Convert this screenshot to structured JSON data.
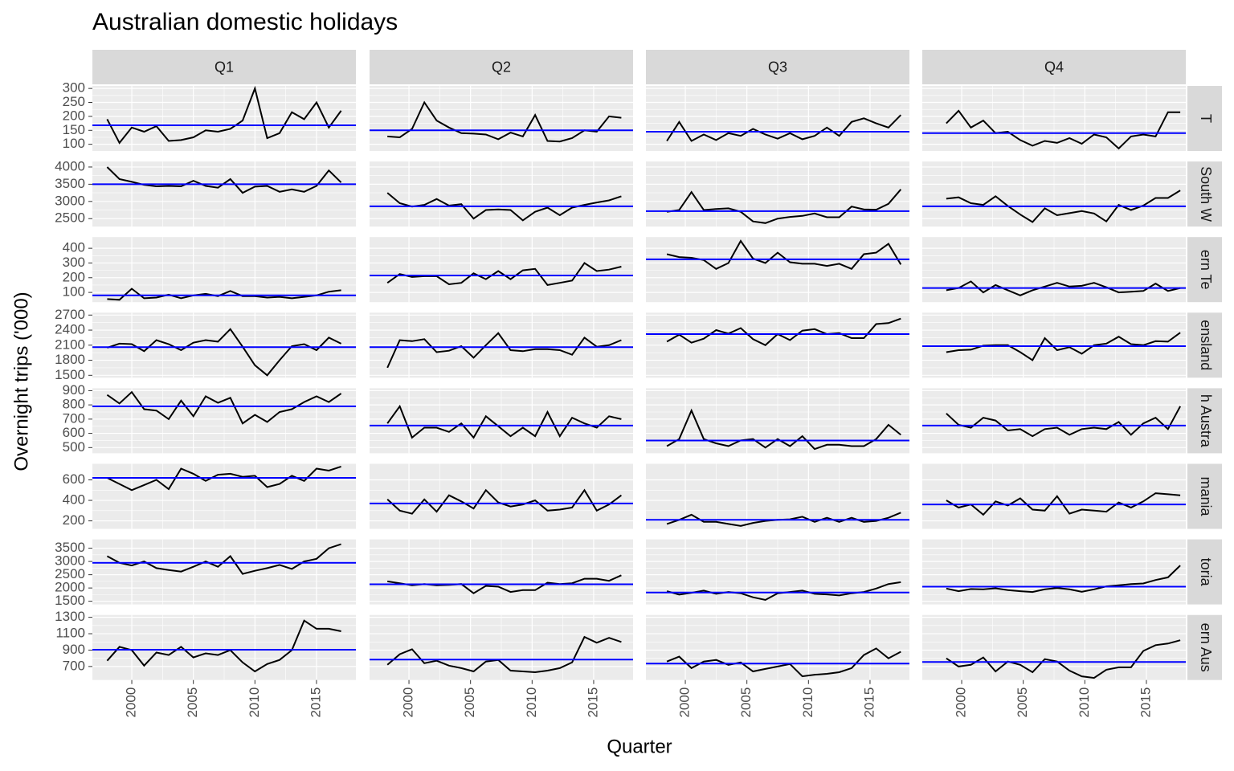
{
  "chart_data": {
    "type": "line",
    "title": "Australian domestic holidays",
    "x_label": "Quarter",
    "y_label": "Overnight trips ('000)",
    "columns": [
      "Q1",
      "Q2",
      "Q3",
      "Q4"
    ],
    "x": [
      1998,
      1999,
      2000,
      2001,
      2002,
      2003,
      2004,
      2005,
      2006,
      2007,
      2008,
      2009,
      2010,
      2011,
      2012,
      2013,
      2014,
      2015,
      2016,
      2017
    ],
    "xlim": [
      1996.8,
      2018.2
    ],
    "xticks": [
      2000,
      2005,
      2010,
      2015
    ],
    "line_color": "#000000",
    "mean_color": "#0000ff",
    "grid": true,
    "rows": [
      {
        "label": "T",
        "ylim": [
          76,
          309
        ],
        "yticks": [
          100,
          150,
          200,
          250,
          300
        ],
        "means": [
          168,
          150,
          145,
          140
        ],
        "values": [
          [
            190,
            105,
            160,
            145,
            165,
            112,
            115,
            125,
            150,
            145,
            155,
            185,
            300,
            122,
            140,
            215,
            190,
            250,
            160,
            220
          ],
          [
            128,
            125,
            155,
            250,
            185,
            160,
            140,
            138,
            135,
            118,
            142,
            128,
            205,
            112,
            110,
            122,
            150,
            145,
            200,
            195
          ],
          [
            112,
            180,
            112,
            135,
            115,
            140,
            130,
            155,
            135,
            120,
            140,
            118,
            130,
            160,
            130,
            180,
            193,
            175,
            160,
            205
          ],
          [
            175,
            220,
            160,
            185,
            140,
            145,
            115,
            95,
            112,
            105,
            122,
            102,
            135,
            125,
            85,
            128,
            135,
            128,
            215,
            215
          ]
        ]
      },
      {
        "label": "South W",
        "ylim": [
          2270,
          4160
        ],
        "yticks": [
          2500,
          3000,
          3500,
          4000
        ],
        "means": [
          3500,
          2860,
          2720,
          2860
        ],
        "values": [
          [
            4000,
            3650,
            3570,
            3480,
            3440,
            3450,
            3440,
            3600,
            3450,
            3400,
            3650,
            3250,
            3430,
            3450,
            3280,
            3350,
            3280,
            3450,
            3900,
            3550
          ],
          [
            3250,
            2950,
            2850,
            2900,
            3070,
            2880,
            2920,
            2500,
            2750,
            2770,
            2750,
            2450,
            2700,
            2820,
            2600,
            2820,
            2900,
            2970,
            3030,
            3150
          ],
          [
            2700,
            2750,
            3270,
            2750,
            2780,
            2800,
            2700,
            2420,
            2370,
            2500,
            2550,
            2580,
            2650,
            2540,
            2540,
            2850,
            2770,
            2760,
            2930,
            3350
          ],
          [
            3080,
            3120,
            2950,
            2900,
            3150,
            2870,
            2620,
            2400,
            2800,
            2600,
            2660,
            2720,
            2650,
            2420,
            2900,
            2750,
            2880,
            3100,
            3100,
            3320
          ]
        ]
      },
      {
        "label": "ern Te",
        "ylim": [
          34,
          476
        ],
        "yticks": [
          100,
          200,
          300,
          400
        ],
        "means": [
          80,
          215,
          325,
          130
        ],
        "values": [
          [
            55,
            50,
            125,
            60,
            65,
            85,
            60,
            80,
            90,
            75,
            110,
            75,
            75,
            65,
            70,
            60,
            70,
            80,
            105,
            115
          ],
          [
            165,
            225,
            205,
            210,
            210,
            155,
            165,
            230,
            190,
            245,
            190,
            250,
            260,
            150,
            165,
            180,
            300,
            245,
            255,
            275
          ],
          [
            360,
            340,
            335,
            320,
            260,
            300,
            450,
            330,
            300,
            370,
            305,
            295,
            295,
            280,
            295,
            260,
            360,
            370,
            430,
            290
          ],
          [
            115,
            130,
            175,
            100,
            150,
            115,
            80,
            115,
            140,
            165,
            140,
            145,
            165,
            135,
            100,
            105,
            110,
            160,
            110,
            130
          ]
        ]
      },
      {
        "label": "ensland",
        "ylim": [
          1452,
          2748
        ],
        "yticks": [
          1500,
          1800,
          2100,
          2400,
          2700
        ],
        "means": [
          2060,
          2060,
          2320,
          2080
        ],
        "values": [
          [
            2050,
            2130,
            2120,
            1980,
            2200,
            2120,
            2000,
            2150,
            2200,
            2170,
            2420,
            2070,
            1700,
            1500,
            1800,
            2080,
            2120,
            2000,
            2250,
            2130
          ],
          [
            1650,
            2200,
            2180,
            2220,
            1960,
            1990,
            2080,
            1850,
            2100,
            2340,
            2000,
            1980,
            2020,
            2020,
            2000,
            1910,
            2250,
            2070,
            2100,
            2200
          ],
          [
            2170,
            2310,
            2150,
            2230,
            2400,
            2330,
            2440,
            2220,
            2100,
            2320,
            2200,
            2390,
            2420,
            2320,
            2340,
            2240,
            2240,
            2520,
            2540,
            2630
          ],
          [
            1960,
            2000,
            2010,
            2090,
            2100,
            2100,
            1960,
            1800,
            2240,
            2000,
            2060,
            1930,
            2100,
            2130,
            2270,
            2120,
            2100,
            2180,
            2170,
            2350
          ]
        ]
      },
      {
        "label": "h Austra",
        "ylim": [
          460,
          917
        ],
        "yticks": [
          500,
          600,
          700,
          800,
          900
        ],
        "means": [
          790,
          655,
          550,
          655
        ],
        "values": [
          [
            870,
            810,
            890,
            770,
            760,
            700,
            830,
            720,
            860,
            815,
            850,
            670,
            730,
            680,
            750,
            770,
            820,
            860,
            820,
            880
          ],
          [
            670,
            790,
            570,
            640,
            640,
            610,
            670,
            570,
            720,
            650,
            580,
            640,
            580,
            750,
            580,
            710,
            670,
            640,
            720,
            700
          ],
          [
            510,
            560,
            760,
            560,
            530,
            510,
            550,
            560,
            500,
            560,
            510,
            580,
            490,
            520,
            520,
            510,
            510,
            560,
            660,
            590
          ],
          [
            740,
            660,
            640,
            710,
            690,
            620,
            630,
            580,
            630,
            640,
            590,
            630,
            640,
            630,
            680,
            590,
            670,
            710,
            630,
            790
          ]
        ]
      },
      {
        "label": "mania",
        "ylim": [
          122,
          757
        ],
        "yticks": [
          200,
          400,
          600
        ],
        "means": [
          620,
          370,
          210,
          360
        ],
        "values": [
          [
            620,
            560,
            500,
            550,
            600,
            510,
            710,
            660,
            590,
            650,
            660,
            630,
            640,
            530,
            560,
            640,
            590,
            710,
            690,
            730
          ],
          [
            410,
            300,
            270,
            410,
            290,
            450,
            390,
            320,
            500,
            380,
            340,
            360,
            400,
            300,
            310,
            330,
            500,
            300,
            360,
            450
          ],
          [
            170,
            210,
            260,
            190,
            190,
            170,
            150,
            180,
            200,
            210,
            215,
            240,
            190,
            230,
            190,
            230,
            190,
            200,
            230,
            280
          ],
          [
            400,
            330,
            360,
            260,
            390,
            350,
            420,
            310,
            300,
            440,
            270,
            310,
            300,
            290,
            380,
            330,
            390,
            470,
            460,
            450
          ]
        ]
      },
      {
        "label": "toria",
        "ylim": [
          1380,
          3833
        ],
        "yticks": [
          1500,
          2000,
          2500,
          3000,
          3500
        ],
        "means": [
          2950,
          2140,
          1830,
          2050
        ],
        "values": [
          [
            3200,
            2950,
            2850,
            3000,
            2750,
            2680,
            2620,
            2800,
            3000,
            2800,
            3200,
            2530,
            2650,
            2750,
            2870,
            2720,
            3000,
            3100,
            3500,
            3650
          ],
          [
            2250,
            2180,
            2100,
            2150,
            2100,
            2120,
            2150,
            1800,
            2080,
            2050,
            1850,
            1920,
            1920,
            2200,
            2150,
            2180,
            2350,
            2350,
            2270,
            2480
          ],
          [
            1880,
            1750,
            1820,
            1900,
            1780,
            1850,
            1800,
            1650,
            1550,
            1800,
            1850,
            1900,
            1780,
            1760,
            1720,
            1800,
            1850,
            1980,
            2150,
            2220
          ],
          [
            1980,
            1880,
            1960,
            1950,
            1990,
            1920,
            1880,
            1850,
            1950,
            2000,
            1950,
            1860,
            1950,
            2060,
            2100,
            2150,
            2170,
            2300,
            2400,
            2850
          ]
        ]
      },
      {
        "label": "ern Aus",
        "ylim": [
          535,
          1329
        ],
        "yticks": [
          700,
          900,
          1100,
          1300
        ],
        "means": [
          905,
          785,
          735,
          755
        ],
        "values": [
          [
            770,
            940,
            900,
            710,
            870,
            840,
            940,
            810,
            860,
            840,
            900,
            750,
            640,
            730,
            780,
            900,
            1260,
            1160,
            1160,
            1130
          ],
          [
            720,
            850,
            910,
            740,
            770,
            710,
            680,
            640,
            760,
            780,
            650,
            640,
            630,
            650,
            680,
            750,
            1060,
            990,
            1050,
            1000
          ],
          [
            760,
            820,
            680,
            760,
            780,
            720,
            750,
            640,
            670,
            700,
            730,
            580,
            600,
            610,
            630,
            680,
            840,
            920,
            800,
            880
          ],
          [
            800,
            700,
            720,
            810,
            640,
            760,
            720,
            630,
            790,
            760,
            650,
            580,
            560,
            660,
            690,
            690,
            890,
            960,
            980,
            1020
          ]
        ]
      }
    ]
  }
}
